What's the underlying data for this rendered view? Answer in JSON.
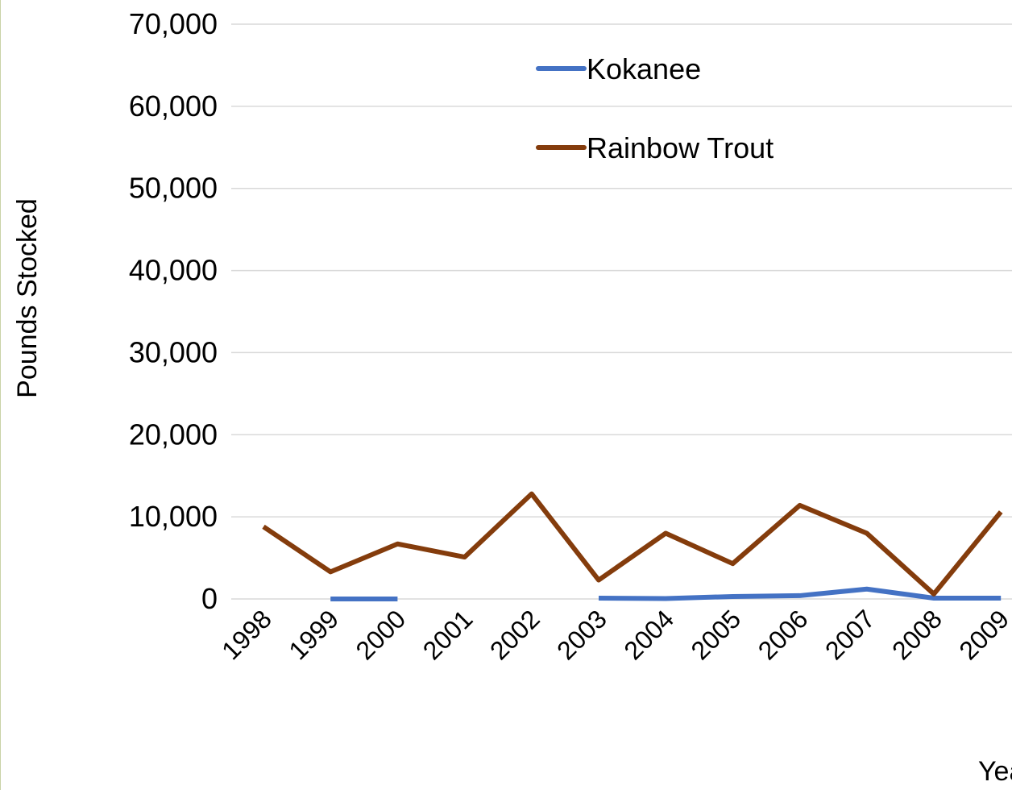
{
  "chart_data": {
    "type": "line",
    "y_label": "Pounds Stocked",
    "x_label": "Year",
    "categories": [
      "1998",
      "1999",
      "2000",
      "2001",
      "2002",
      "2003",
      "2004",
      "2005",
      "2006",
      "2007",
      "2008",
      "2009"
    ],
    "series": [
      {
        "name": "Kokanee",
        "color": "#4472c4",
        "values": [
          null,
          0,
          0,
          null,
          null,
          100,
          50,
          300,
          400,
          1200,
          100,
          100
        ]
      },
      {
        "name": "Rainbow Trout",
        "color": "#843c0c",
        "values": [
          8800,
          3300,
          6700,
          5100,
          12800,
          2300,
          8000,
          4300,
          11400,
          8000,
          600,
          10600
        ]
      }
    ],
    "ylim": [
      0,
      70000
    ],
    "yticks": [
      0,
      {
        "value": 10000,
        "label": "10,000"
      },
      {
        "value": 20000,
        "label": "20,000"
      },
      {
        "value": 30000,
        "label": "30,000"
      },
      {
        "value": 40000,
        "label": "40,000"
      },
      {
        "value": 50000,
        "label": "50,000"
      },
      {
        "value": 60000,
        "label": "60,000"
      },
      {
        "value": 70000,
        "label": "70,000"
      }
    ],
    "grid": true,
    "legend": "top"
  }
}
